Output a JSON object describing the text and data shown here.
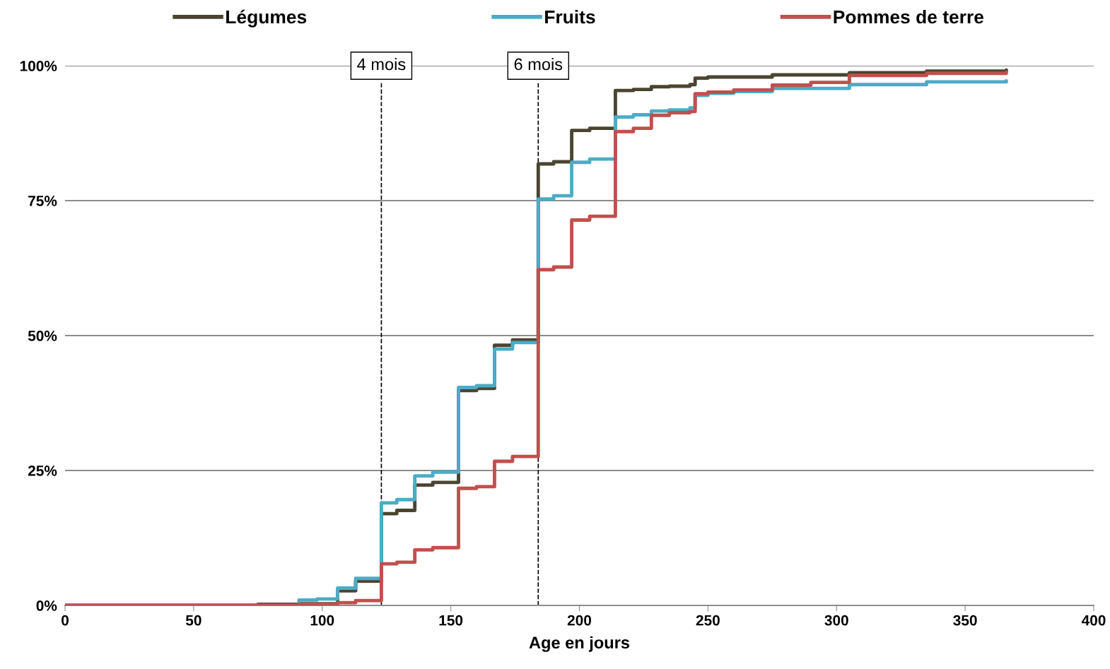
{
  "chart_data": {
    "type": "step",
    "xlabel": "Age en jours",
    "xlim": [
      0,
      400
    ],
    "xticks": [
      0,
      50,
      100,
      150,
      200,
      250,
      300,
      350,
      400
    ],
    "ylim": [
      0,
      100
    ],
    "yticks": [
      {
        "value": 0,
        "label": "0%"
      },
      {
        "value": 25,
        "label": "25%"
      },
      {
        "value": 50,
        "label": "50%"
      },
      {
        "value": 75,
        "label": "75%"
      },
      {
        "value": 100,
        "label": "100%"
      }
    ],
    "grid": "y",
    "legend": "top",
    "line_style": "solid",
    "marker": "none",
    "ref_lines": [
      {
        "axis": "x",
        "value": 123,
        "label": "4 mois",
        "color": "#000000",
        "line_style": "dashed"
      },
      {
        "axis": "x",
        "value": 184,
        "label": "6 mois",
        "color": "#000000",
        "line_style": "dashed"
      }
    ],
    "series": [
      {
        "name": "Légumes",
        "color": "#4a4530",
        "x": [
          0,
          75,
          91,
          106,
          113,
          123,
          129,
          136,
          143,
          153,
          160,
          167,
          174,
          184,
          190,
          197,
          204,
          214,
          221,
          228,
          235,
          243,
          245,
          250,
          275,
          305,
          335,
          366
        ],
        "values": [
          0,
          0.2,
          0.3,
          2.7,
          4.5,
          17,
          17.6,
          22.3,
          22.8,
          39.8,
          40.2,
          48.2,
          49.2,
          81.8,
          82.2,
          88,
          88.4,
          95.4,
          95.6,
          96.1,
          96.2,
          96.5,
          97.7,
          97.9,
          98.3,
          98.7,
          99,
          99.2
        ]
      },
      {
        "name": "Fruits",
        "color": "#4bacc6",
        "x": [
          0,
          91,
          98,
          106,
          113,
          123,
          129,
          136,
          143,
          153,
          160,
          167,
          174,
          184,
          190,
          197,
          204,
          214,
          221,
          228,
          235,
          243,
          245,
          250,
          260,
          275,
          305,
          335,
          366
        ],
        "values": [
          0,
          1,
          1.2,
          3.2,
          5,
          19,
          19.6,
          24,
          24.7,
          40.4,
          40.7,
          47.5,
          48.7,
          75.3,
          75.9,
          82.1,
          82.7,
          90.5,
          90.9,
          91.6,
          91.8,
          92.2,
          94.5,
          94.9,
          95.2,
          95.8,
          96.5,
          97,
          97.2
        ]
      },
      {
        "name": "Pommes de terre",
        "color": "#c0504d",
        "x": [
          0,
          91,
          106,
          113,
          123,
          129,
          136,
          143,
          153,
          160,
          167,
          174,
          184,
          190,
          197,
          204,
          214,
          221,
          228,
          235,
          243,
          245,
          250,
          260,
          275,
          290,
          305,
          335,
          366
        ],
        "values": [
          0,
          0.2,
          0.5,
          0.9,
          7.7,
          8,
          10.3,
          10.7,
          21.7,
          22,
          26.7,
          27.6,
          62.2,
          62.7,
          71.4,
          72.1,
          87.8,
          88.4,
          90.8,
          91.3,
          91.5,
          94.8,
          95.1,
          95.5,
          96.4,
          96.9,
          98.2,
          98.6,
          98.8
        ]
      }
    ]
  }
}
